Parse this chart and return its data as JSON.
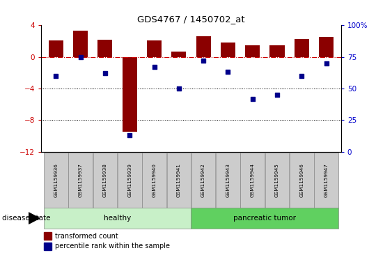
{
  "title": "GDS4767 / 1450702_at",
  "samples": [
    "GSM1159936",
    "GSM1159937",
    "GSM1159938",
    "GSM1159939",
    "GSM1159940",
    "GSM1159941",
    "GSM1159942",
    "GSM1159943",
    "GSM1159944",
    "GSM1159945",
    "GSM1159946",
    "GSM1159947"
  ],
  "transformed_count": [
    2.1,
    3.3,
    2.2,
    -9.5,
    2.1,
    0.7,
    2.6,
    1.8,
    1.5,
    1.5,
    2.3,
    2.5
  ],
  "percentile_rank": [
    60,
    75,
    62,
    13,
    67,
    50,
    72,
    63,
    42,
    45,
    60,
    70
  ],
  "healthy_indices": [
    0,
    1,
    2,
    3,
    4,
    5
  ],
  "tumor_indices": [
    6,
    7,
    8,
    9,
    10,
    11
  ],
  "healthy_color": "#c8f0c8",
  "tumor_color": "#60d060",
  "bar_color": "#8B0000",
  "dot_color": "#00008B",
  "ylim_left": [
    -12,
    4
  ],
  "ylim_right": [
    0,
    100
  ],
  "yticks_left": [
    4,
    0,
    -4,
    -8,
    -12
  ],
  "yticks_right": [
    100,
    75,
    50,
    25,
    0
  ],
  "hline_y": 0,
  "hline_color": "#CC0000",
  "dotted_lines": [
    -4,
    -8
  ],
  "disease_state_label": "disease state",
  "legend_items": [
    {
      "label": "transformed count",
      "color": "#8B0000"
    },
    {
      "label": "percentile rank within the sample",
      "color": "#00008B"
    }
  ],
  "ylabel_left_color": "#CC0000",
  "ylabel_right_color": "#0000CC",
  "tick_label_bg": "#cccccc",
  "plot_bg_color": "#ffffff"
}
